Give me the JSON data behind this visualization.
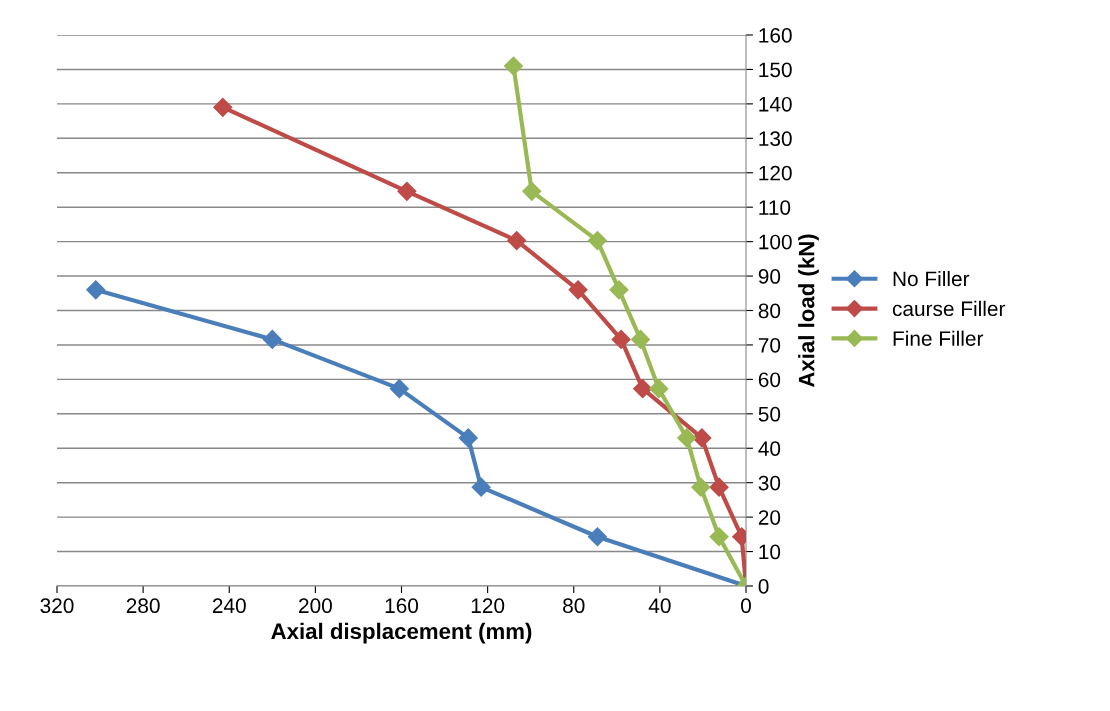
{
  "chart_data": {
    "type": "line",
    "xlabel": "Axial displacement (mm)",
    "ylabel": "Axial load (kN)",
    "xlim": [
      320,
      0
    ],
    "xticks": [
      320,
      280,
      240,
      200,
      160,
      120,
      80,
      40,
      0
    ],
    "ylim": [
      0,
      160
    ],
    "yticks": [
      0,
      10,
      20,
      30,
      40,
      50,
      60,
      70,
      80,
      90,
      100,
      110,
      120,
      130,
      140,
      150,
      160
    ],
    "grid": "y",
    "legend": "right",
    "marker": "diamond",
    "line_style": "solid",
    "series": [
      {
        "name": "No Filler",
        "color": "#4a7ebb",
        "x": [
          0,
          69,
          123,
          129,
          161,
          220,
          302
        ],
        "values": [
          0,
          14.3,
          28.7,
          43,
          57.3,
          71.6,
          86
        ]
      },
      {
        "name": "caurse Filler",
        "color": "#be4b48",
        "x": [
          0,
          2,
          12.5,
          20.5,
          48,
          58,
          78,
          106.5,
          157.5,
          243
        ],
        "values": [
          0,
          14.3,
          28.7,
          43,
          57.3,
          71.6,
          86,
          100.3,
          114.6,
          139
        ]
      },
      {
        "name": "Fine Filler",
        "color": "#98b954",
        "x": [
          0,
          12.5,
          21,
          27.5,
          40.5,
          49,
          59,
          69,
          99.5,
          108
        ],
        "values": [
          0,
          14.3,
          28.7,
          43,
          57.3,
          71.6,
          86,
          100.3,
          114.6,
          151
        ]
      }
    ]
  }
}
